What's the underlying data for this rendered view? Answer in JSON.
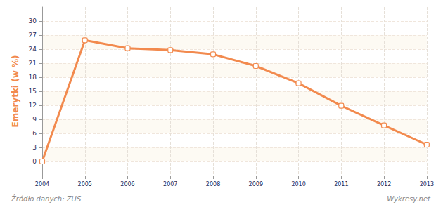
{
  "chart_data": {
    "type": "line",
    "y_label": "Emerytki (w %)",
    "categories": [
      "2004",
      "2005",
      "2006",
      "2007",
      "2008",
      "2009",
      "2010",
      "2011",
      "2012",
      "2013"
    ],
    "values": [
      0,
      25.9,
      24.2,
      23.8,
      22.9,
      20.4,
      16.7,
      11.9,
      7.7,
      3.6
    ],
    "color": "#f28a4e",
    "marker": "roundRect",
    "ylim": [
      -3,
      33
    ],
    "yticks": [
      0,
      3,
      6,
      9,
      12,
      15,
      18,
      21,
      24,
      27,
      30
    ],
    "grid": true,
    "annotations": [
      "Źródło danych: ZUS",
      "Wykresy.net",
      "wykresy.net"
    ]
  }
}
